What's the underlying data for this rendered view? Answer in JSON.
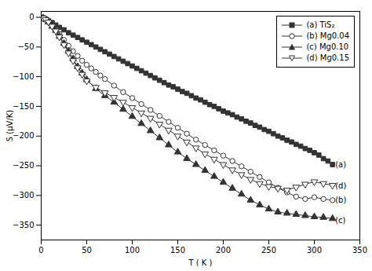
{
  "chart_data": {
    "type": "line",
    "xlabel": "T ( K )",
    "ylabel": "S (μV/K)",
    "xlim": [
      0,
      350
    ],
    "ylim": [
      -375,
      10
    ],
    "xticks": [
      0,
      50,
      100,
      150,
      200,
      250,
      300,
      350
    ],
    "yticks": [
      0,
      -50,
      -100,
      -150,
      -200,
      -250,
      -300,
      -350
    ],
    "grid": false,
    "legend": "upper right",
    "series": [
      {
        "name": "(a) TiS₂",
        "color": "#333333",
        "marker": "square",
        "x": [
          2,
          5,
          8,
          12,
          16,
          20,
          25,
          30,
          35,
          40,
          45,
          50,
          55,
          60,
          65,
          70,
          75,
          80,
          85,
          90,
          95,
          100,
          105,
          110,
          115,
          120,
          125,
          130,
          135,
          140,
          145,
          150,
          155,
          160,
          165,
          170,
          175,
          180,
          185,
          190,
          195,
          200,
          205,
          210,
          215,
          220,
          225,
          230,
          235,
          240,
          245,
          250,
          255,
          260,
          265,
          270,
          275,
          280,
          285,
          290,
          295,
          300,
          305,
          310,
          315,
          320
        ],
        "values": [
          -1,
          -3,
          -6,
          -9,
          -13,
          -17,
          -21,
          -26,
          -30,
          -34,
          -38,
          -42,
          -46,
          -50,
          -54,
          -58,
          -62,
          -66,
          -70,
          -74,
          -78,
          -82,
          -86,
          -90,
          -94,
          -98,
          -102,
          -106,
          -110,
          -114,
          -117,
          -121,
          -125,
          -128,
          -132,
          -136,
          -139,
          -143,
          -147,
          -150,
          -154,
          -158,
          -161,
          -164,
          -168,
          -171,
          -175,
          -178,
          -182,
          -185,
          -189,
          -192,
          -196,
          -200,
          -203,
          -207,
          -210,
          -214,
          -217,
          -221,
          -224,
          -228,
          -232,
          -238,
          -242,
          -248
        ]
      },
      {
        "name": "(b) Mg0.04",
        "color": "#333333",
        "marker": "circle-open",
        "x": [
          2,
          5,
          8,
          12,
          16,
          20,
          25,
          30,
          35,
          40,
          45,
          50,
          55,
          60,
          65,
          70,
          80,
          90,
          100,
          110,
          120,
          130,
          140,
          150,
          160,
          170,
          180,
          190,
          200,
          210,
          220,
          230,
          240,
          250,
          260,
          270,
          280,
          290,
          300,
          310,
          320
        ],
        "values": [
          -1,
          -4,
          -8,
          -14,
          -20,
          -28,
          -38,
          -48,
          -57,
          -65,
          -73,
          -80,
          -86,
          -92,
          -98,
          -104,
          -115,
          -126,
          -136,
          -146,
          -156,
          -166,
          -176,
          -186,
          -196,
          -206,
          -215,
          -224,
          -233,
          -242,
          -251,
          -260,
          -269,
          -278,
          -287,
          -295,
          -302,
          -306,
          -303,
          -306,
          -308
        ]
      },
      {
        "name": "(c) Mg0.10",
        "color": "#333333",
        "marker": "triangle-up",
        "x": [
          2,
          5,
          8,
          12,
          16,
          20,
          25,
          30,
          35,
          40,
          45,
          50,
          60,
          70,
          80,
          90,
          100,
          110,
          120,
          130,
          140,
          150,
          160,
          170,
          180,
          190,
          200,
          210,
          220,
          230,
          240,
          250,
          260,
          270,
          280,
          290,
          300,
          310,
          320
        ],
        "values": [
          -1,
          -4,
          -8,
          -15,
          -22,
          -32,
          -44,
          -57,
          -70,
          -83,
          -94,
          -105,
          -120,
          -132,
          -143,
          -155,
          -167,
          -179,
          -191,
          -203,
          -215,
          -227,
          -238,
          -248,
          -258,
          -268,
          -278,
          -288,
          -298,
          -308,
          -316,
          -323,
          -328,
          -330,
          -332,
          -334,
          -336,
          -337,
          -339
        ]
      },
      {
        "name": "(d) Mg0.15",
        "color": "#333333",
        "marker": "triangle-down-open",
        "x": [
          2,
          5,
          8,
          12,
          16,
          20,
          25,
          30,
          35,
          40,
          45,
          50,
          60,
          70,
          80,
          90,
          100,
          110,
          120,
          130,
          140,
          150,
          160,
          170,
          180,
          190,
          200,
          210,
          220,
          230,
          240,
          250,
          260,
          270,
          280,
          290,
          300,
          310,
          320
        ],
        "values": [
          -1,
          -4,
          -8,
          -15,
          -23,
          -33,
          -46,
          -60,
          -73,
          -85,
          -96,
          -107,
          -118,
          -127,
          -135,
          -143,
          -152,
          -161,
          -170,
          -180,
          -190,
          -200,
          -210,
          -220,
          -230,
          -239,
          -248,
          -257,
          -265,
          -273,
          -280,
          -285,
          -288,
          -291,
          -286,
          -281,
          -277,
          -280,
          -283
        ]
      }
    ],
    "annotations": [
      {
        "text": "(a)",
        "x": 323,
        "y": -248
      },
      {
        "text": "(b)",
        "x": 323,
        "y": -308
      },
      {
        "text": "(c)",
        "x": 323,
        "y": -342
      },
      {
        "text": "(d)",
        "x": 323,
        "y": -284
      }
    ]
  }
}
